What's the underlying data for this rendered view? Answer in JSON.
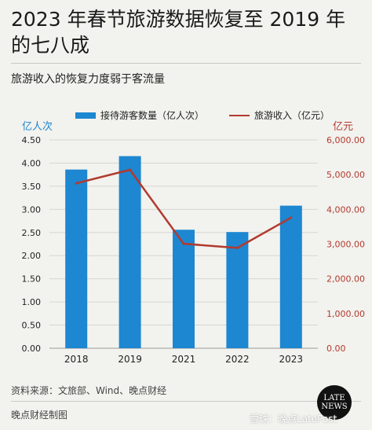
{
  "header": {
    "title": "2023 年春节旅游数据恢复至 2019 年的七八成",
    "subtitle": "旅游收入的恢复力度弱于客流量"
  },
  "axes": {
    "left_title": "亿人次",
    "right_title": "亿元"
  },
  "legend": {
    "bar_label": "接待游客数量（亿人次）",
    "line_label": "旅游收入（亿元）"
  },
  "colors": {
    "bar": "#1d87d1",
    "line": "#b23a2f",
    "left_tick": "#222222",
    "right_tick": "#b23a2f"
  },
  "chart_data": {
    "type": "bar",
    "categories": [
      "2018",
      "2019",
      "2021",
      "2022",
      "2023"
    ],
    "series": [
      {
        "name": "接待游客数量（亿人次）",
        "type": "bar",
        "axis": "left",
        "values": [
          3.86,
          4.15,
          2.56,
          2.51,
          3.08
        ]
      },
      {
        "name": "旅游收入（亿元）",
        "type": "line",
        "axis": "right",
        "values": [
          4750,
          5140,
          3010,
          2890,
          3760
        ]
      }
    ],
    "y_left": {
      "label": "亿人次",
      "min": 0,
      "max": 4.5,
      "ticks": [
        "0.00",
        "0.50",
        "1.00",
        "1.50",
        "2.00",
        "2.50",
        "3.00",
        "3.50",
        "4.00",
        "4.50"
      ]
    },
    "y_right": {
      "label": "亿元",
      "min": 0,
      "max": 6000,
      "ticks": [
        "0.00",
        "1,000.00",
        "2,000.00",
        "3,000.00",
        "4,000.00",
        "5,000.00",
        "6,000.00"
      ]
    },
    "grid": true,
    "legend_position": "top"
  },
  "footer": {
    "source": "资料来源：文旅部、Wind、晚点财经",
    "credit": "晚点财经制图",
    "logo_line1": "LATE",
    "logo_line2": "NEWS",
    "watermark": "雪球：晚点LatePost"
  }
}
